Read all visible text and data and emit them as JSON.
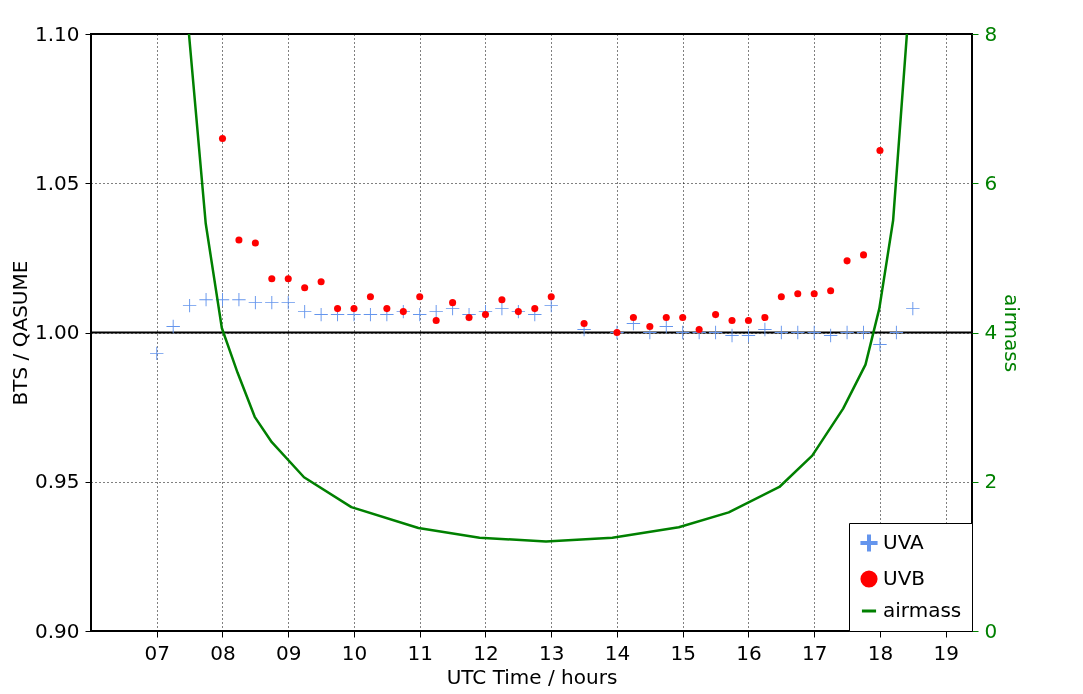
{
  "chart_data": {
    "type": "scatter",
    "xlabel": "UTC Time / hours",
    "ylabel": "BTS / QASUME",
    "y2label": "airmass",
    "xlim": [
      6,
      19.4
    ],
    "ylim": [
      0.9,
      1.1
    ],
    "y2lim": [
      0,
      8
    ],
    "xticks": [
      {
        "value": 7,
        "label": "07"
      },
      {
        "value": 8,
        "label": "08"
      },
      {
        "value": 9,
        "label": "09"
      },
      10,
      11,
      12,
      13,
      14,
      15,
      16,
      17,
      18,
      19
    ],
    "yticks": [
      {
        "value": 0.9,
        "label": "0.90"
      },
      0.95,
      {
        "value": 1.0,
        "label": "1.00"
      },
      1.05,
      {
        "value": 1.1,
        "label": "1.10"
      }
    ],
    "y2ticks": [
      0,
      2,
      4,
      6,
      8
    ],
    "grid": true,
    "legend": "bottom right",
    "ref_lines": [
      {
        "axis": "y",
        "value": 1.0,
        "color": "#000000"
      }
    ],
    "series": [
      {
        "name": "UVA",
        "marker": "cross",
        "color": "#6495ed",
        "x": [
          7,
          7.25,
          7.5,
          7.75,
          8,
          8.25,
          8.5,
          8.75,
          9,
          9.25,
          9.5,
          9.75,
          10,
          10.25,
          10.5,
          10.75,
          11,
          11.25,
          11.5,
          11.75,
          12,
          12.25,
          12.5,
          12.75,
          13,
          13.5,
          14,
          14.25,
          14.5,
          14.75,
          15,
          15.25,
          15.5,
          15.75,
          16,
          16.25,
          16.5,
          16.75,
          17,
          17.25,
          17.5,
          17.75,
          18,
          18.25,
          18.5
        ],
        "values": [
          0.993,
          1.002,
          1.009,
          1.011,
          1.011,
          1.011,
          1.01,
          1.01,
          1.01,
          1.007,
          1.006,
          1.006,
          1.006,
          1.006,
          1.006,
          1.007,
          1.006,
          1.007,
          1.008,
          1.006,
          1.007,
          1.008,
          1.007,
          1.006,
          1.009,
          1.001,
          1.0,
          1.003,
          1.0,
          1.002,
          1.0,
          1.0,
          1.0,
          0.999,
          0.999,
          1.001,
          1.0,
          1.0,
          1.0,
          0.999,
          1.0,
          1.0,
          0.996,
          1.0,
          1.008
        ]
      },
      {
        "name": "UVB",
        "marker": "circle",
        "color": "#ff0000",
        "x": [
          8,
          8.25,
          8.5,
          8.75,
          9,
          9.25,
          9.5,
          9.75,
          10,
          10.25,
          10.5,
          10.75,
          11,
          11.25,
          11.5,
          11.75,
          12,
          12.25,
          12.5,
          12.75,
          13,
          13.5,
          14,
          14.25,
          14.5,
          14.75,
          15,
          15.25,
          15.5,
          15.75,
          16,
          16.25,
          16.5,
          16.75,
          17,
          17.25,
          17.5,
          17.75,
          18
        ],
        "values": [
          1.065,
          1.031,
          1.03,
          1.018,
          1.018,
          1.015,
          1.017,
          1.008,
          1.008,
          1.012,
          1.008,
          1.007,
          1.012,
          1.004,
          1.01,
          1.005,
          1.006,
          1.011,
          1.007,
          1.008,
          1.012,
          1.003,
          1.0,
          1.005,
          1.002,
          1.005,
          1.005,
          1.001,
          1.006,
          1.004,
          1.004,
          1.005,
          1.012,
          1.013,
          1.013,
          1.014,
          1.024,
          1.026,
          1.061
        ]
      },
      {
        "name": "airmass",
        "type": "line",
        "axis": "y2",
        "color": "#008000",
        "x": [
          7.49,
          7.745,
          7.99,
          8.23,
          8.49,
          8.75,
          9.24,
          9.96,
          10.98,
          11.91,
          12.92,
          13.93,
          14.94,
          15.7,
          16.47,
          16.97,
          17.44,
          17.78,
          17.99,
          18.2,
          18.41
        ],
        "values": [
          8,
          5.46,
          4.06,
          3.46,
          2.87,
          2.53,
          2.06,
          1.66,
          1.38,
          1.25,
          1.2,
          1.25,
          1.39,
          1.59,
          1.93,
          2.35,
          2.98,
          3.57,
          4.32,
          5.5,
          8
        ]
      }
    ]
  }
}
